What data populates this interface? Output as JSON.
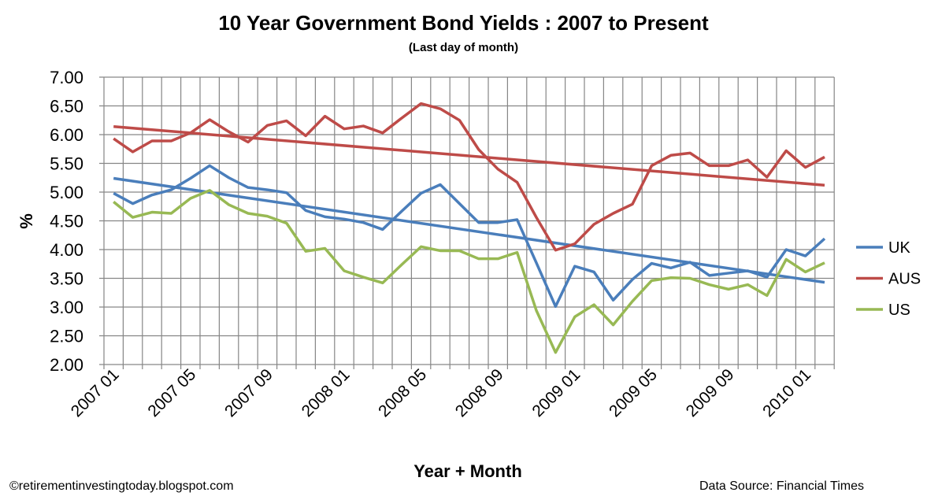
{
  "chart_data": {
    "type": "line",
    "title": "10 Year Government Bond Yields : 2007 to Present",
    "subtitle": "(Last day of month)",
    "xlabel": "Year + Month",
    "ylabel": "%",
    "ylim": [
      2.0,
      7.0
    ],
    "yticks": [
      "2.00",
      "2.50",
      "3.00",
      "3.50",
      "4.00",
      "4.50",
      "5.00",
      "5.50",
      "6.00",
      "6.50",
      "7.00"
    ],
    "xtick_labels": [
      "2007 01",
      "2007 05",
      "2007 09",
      "2008 01",
      "2008 05",
      "2008 09",
      "2009 01",
      "2009 05",
      "2009 09",
      "2010 01"
    ],
    "categories": [
      "2007 01",
      "2007 02",
      "2007 03",
      "2007 04",
      "2007 05",
      "2007 06",
      "2007 07",
      "2007 08",
      "2007 09",
      "2007 10",
      "2007 11",
      "2007 12",
      "2008 01",
      "2008 02",
      "2008 03",
      "2008 04",
      "2008 05",
      "2008 06",
      "2008 07",
      "2008 08",
      "2008 09",
      "2008 10",
      "2008 11",
      "2008 12",
      "2009 01",
      "2009 02",
      "2009 03",
      "2009 04",
      "2009 05",
      "2009 06",
      "2009 07",
      "2009 08",
      "2009 09",
      "2009 10",
      "2009 11",
      "2009 12",
      "2010 01",
      "2010 02"
    ],
    "grid": true,
    "legend_position": "right",
    "series": [
      {
        "name": "UK",
        "color": "#4a7ebb",
        "values": [
          4.98,
          4.8,
          4.95,
          5.04,
          5.24,
          5.46,
          5.25,
          5.08,
          5.04,
          4.99,
          4.68,
          4.57,
          4.53,
          4.47,
          4.35,
          4.67,
          4.98,
          5.13,
          4.8,
          4.47,
          4.47,
          4.52,
          3.77,
          3.01,
          3.71,
          3.61,
          3.12,
          3.48,
          3.76,
          3.68,
          3.78,
          3.55,
          3.59,
          3.63,
          3.52,
          4.0,
          3.89,
          4.19
        ],
        "trendline": [
          5.24,
          3.43
        ]
      },
      {
        "name": "AUS",
        "color": "#be4b48",
        "values": [
          5.93,
          5.7,
          5.89,
          5.89,
          6.03,
          6.26,
          6.05,
          5.87,
          6.16,
          6.24,
          5.98,
          6.32,
          6.1,
          6.15,
          6.03,
          6.29,
          6.54,
          6.45,
          6.25,
          5.74,
          5.4,
          5.17,
          4.56,
          3.99,
          4.1,
          4.44,
          4.63,
          4.79,
          5.46,
          5.64,
          5.68,
          5.46,
          5.46,
          5.56,
          5.26,
          5.72,
          5.43,
          5.61
        ],
        "trendline": [
          6.14,
          5.12
        ]
      },
      {
        "name": "US",
        "color": "#98b954",
        "values": [
          4.83,
          4.56,
          4.65,
          4.63,
          4.89,
          5.03,
          4.78,
          4.63,
          4.58,
          4.46,
          3.97,
          4.02,
          3.63,
          3.52,
          3.42,
          3.74,
          4.05,
          3.98,
          3.98,
          3.84,
          3.84,
          3.95,
          2.94,
          2.21,
          2.83,
          3.04,
          2.69,
          3.1,
          3.46,
          3.51,
          3.5,
          3.39,
          3.31,
          3.39,
          3.2,
          3.83,
          3.61,
          3.77
        ]
      }
    ]
  },
  "footer": {
    "copyright": "©retirementinvestingtoday.blogspot.com",
    "source": "Data Source: Financial Times"
  }
}
